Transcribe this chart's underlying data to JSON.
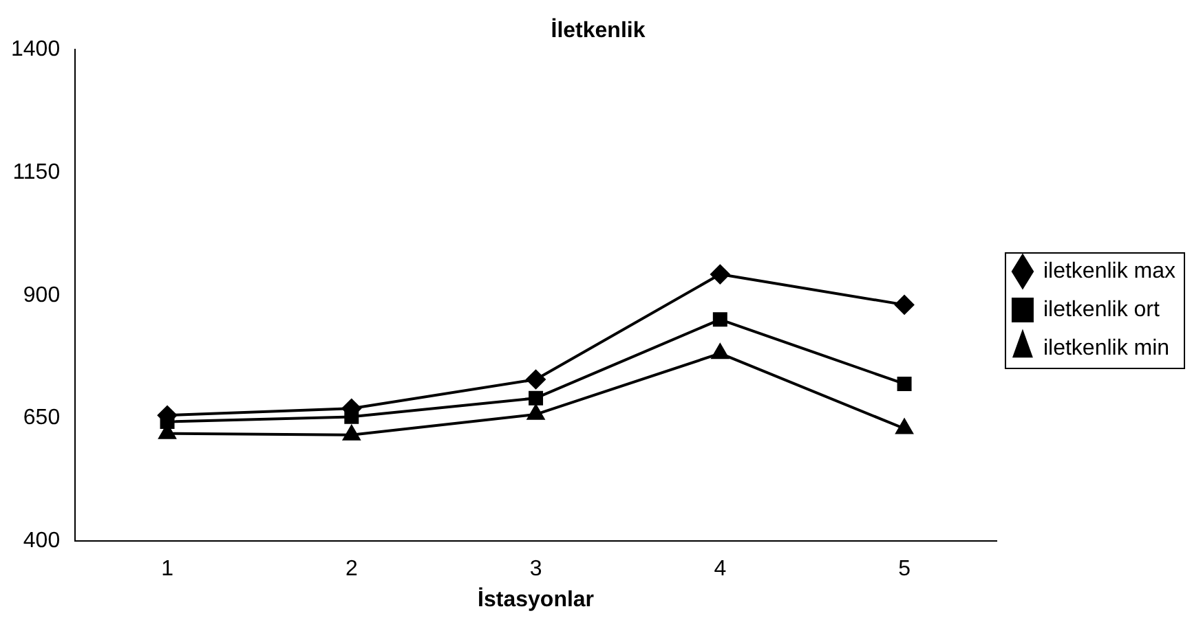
{
  "chart_data": {
    "type": "line",
    "title": "İletkenlik",
    "xlabel": "İstasyonlar",
    "categories": [
      "1",
      "2",
      "3",
      "4",
      "5"
    ],
    "series": [
      {
        "name": "iletkenlik max",
        "color": "#000000",
        "marker": "diamond",
        "values": [
          656,
          670,
          729,
          943,
          881
        ]
      },
      {
        "name": "iletkenlik ort",
        "color": "#000000",
        "marker": "square",
        "values": [
          643,
          653,
          691,
          851,
          720
        ]
      },
      {
        "name": "iletkenlik min",
        "color": "#000000",
        "marker": "triangle",
        "values": [
          619,
          616,
          658,
          782,
          629
        ]
      }
    ],
    "ylim": [
      400,
      1400
    ],
    "yticks": [
      400,
      650,
      900,
      1150,
      1400
    ],
    "grid": false,
    "legend": "right",
    "line_style": "solid"
  }
}
